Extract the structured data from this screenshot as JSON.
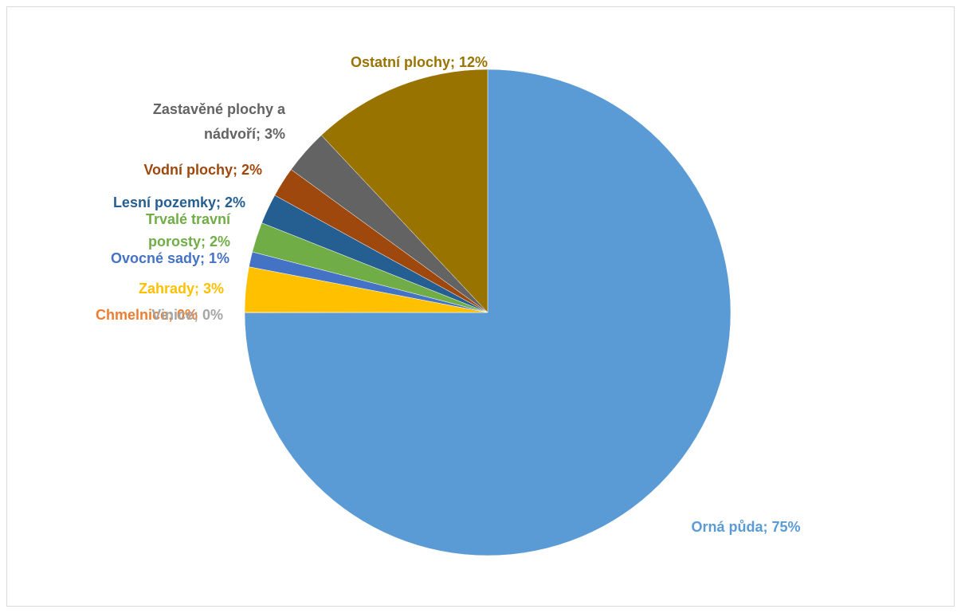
{
  "chart_data": {
    "type": "pie",
    "title": "",
    "start_angle_deg": 0,
    "direction": "clockwise",
    "slices": [
      {
        "name": "Orná půda",
        "value": 75,
        "label": "Orná půda; 75%",
        "color": "#5B9BD5"
      },
      {
        "name": "Chmelnice",
        "value": 0.02,
        "label": "Chmelnice; 0%",
        "color": "#ED7D31"
      },
      {
        "name": "Vinice",
        "value": 0.02,
        "label": "Vinice; 0%",
        "color": "#A5A5A5"
      },
      {
        "name": "Zahrady",
        "value": 3,
        "label": "Zahrady; 3%",
        "color": "#FFC000"
      },
      {
        "name": "Ovocné sady",
        "value": 1,
        "label": "Ovocné sady; 1%",
        "color": "#4472C4"
      },
      {
        "name": "Trvalé travní porosty",
        "value": 2,
        "label": [
          "Trvalé travní",
          "porosty; 2%"
        ],
        "color": "#70AD47"
      },
      {
        "name": "Lesní pozemky",
        "value": 2,
        "label": "Lesní pozemky; 2%",
        "color": "#255E91"
      },
      {
        "name": "Vodní plochy",
        "value": 2,
        "label": "Vodní plochy; 2%",
        "color": "#9E480E"
      },
      {
        "name": "Zastavěné plochy a nádvoří",
        "value": 3,
        "label": [
          "Zastavěné plochy a",
          "nádvoří; 3%"
        ],
        "color": "#636363"
      },
      {
        "name": "Ostatní plochy",
        "value": 12,
        "label": "Ostatní plochy; 12%",
        "color": "#997300"
      }
    ]
  }
}
